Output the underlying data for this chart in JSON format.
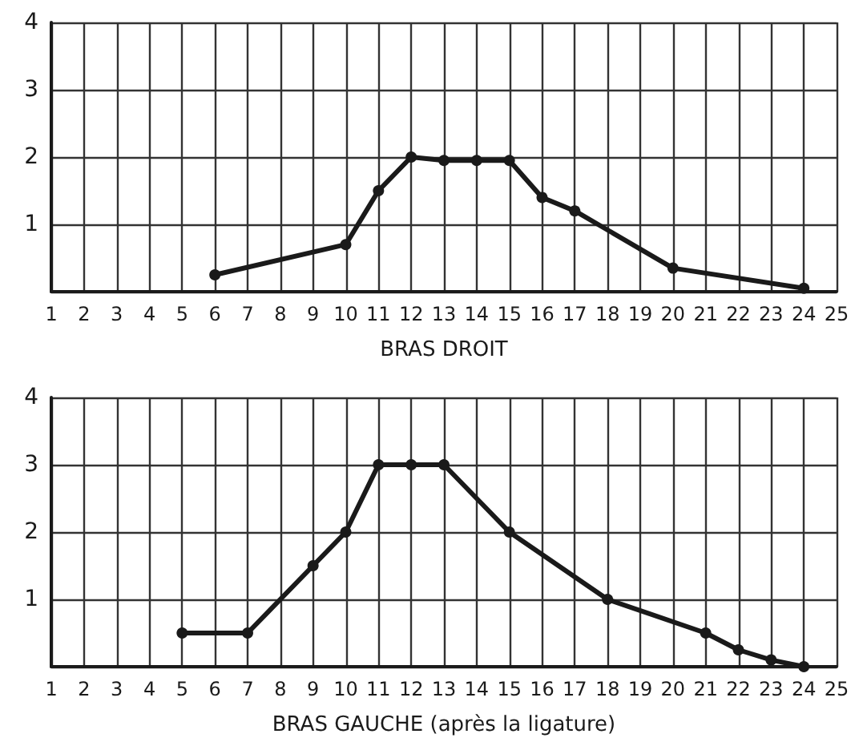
{
  "chart_data": [
    {
      "type": "line",
      "xlabel": "BRAS DROIT",
      "x": [
        6,
        10,
        11,
        12,
        13,
        14,
        15,
        16,
        17,
        20,
        24
      ],
      "values": [
        0.25,
        0.7,
        1.5,
        2.0,
        1.95,
        1.95,
        1.95,
        1.4,
        1.2,
        0.35,
        0.05
      ],
      "color": "#1a1a1a",
      "xlim": [
        1,
        25
      ],
      "xticks": [
        1,
        2,
        3,
        4,
        5,
        6,
        7,
        8,
        9,
        10,
        11,
        12,
        13,
        14,
        15,
        16,
        17,
        18,
        19,
        20,
        21,
        22,
        23,
        24,
        25
      ],
      "ylim": [
        0,
        4
      ],
      "yticks": [
        {
          "value": 0,
          "label": null
        },
        1,
        2,
        3,
        4
      ],
      "grid": true,
      "marker": "circle",
      "line_style": "solid"
    },
    {
      "type": "line",
      "xlabel": "BRAS GAUCHE (après la ligature)",
      "x": [
        5,
        7,
        9,
        10,
        11,
        12,
        13,
        15,
        18,
        21,
        22,
        23,
        24
      ],
      "values": [
        0.5,
        0.5,
        1.5,
        2.0,
        3.0,
        3.0,
        3.0,
        2.0,
        1.0,
        0.5,
        0.25,
        0.1,
        0
      ],
      "color": "#1a1a1a",
      "xlim": [
        1,
        25
      ],
      "xticks": [
        1,
        2,
        3,
        4,
        5,
        6,
        7,
        8,
        9,
        10,
        11,
        12,
        13,
        14,
        15,
        16,
        17,
        18,
        19,
        20,
        21,
        22,
        23,
        24,
        25
      ],
      "ylim": [
        0,
        4
      ],
      "yticks": [
        {
          "value": 0,
          "label": null
        },
        1,
        2,
        3,
        4
      ],
      "grid": true,
      "marker": "circle",
      "line_style": "solid"
    }
  ]
}
